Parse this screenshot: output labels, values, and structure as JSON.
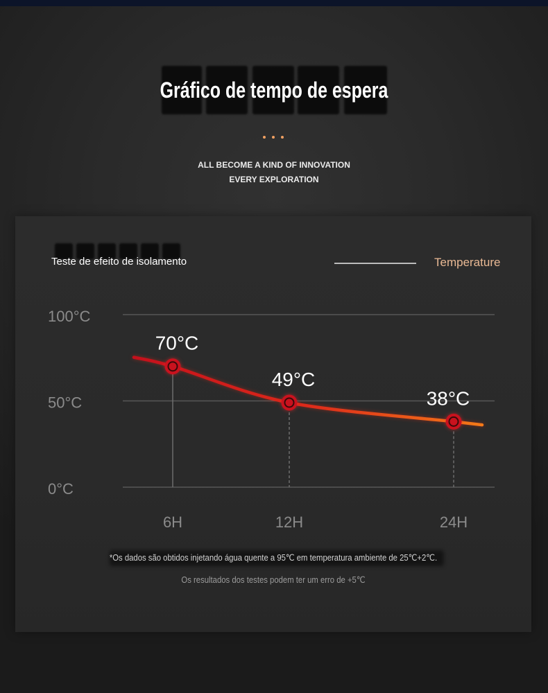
{
  "header": {
    "title": "Gráfico de tempo de espera",
    "tagline_lines": [
      "ALL BECOME A KIND OF INNOVATION",
      "EVERY EXPLORATION"
    ],
    "accent_color": "#f0a062"
  },
  "panel": {
    "footnotes": [
      "*Os dados são obtidos injetando água quente a 95℃ em temperatura ambiente de 25℃+2℃.",
      "Os resultados dos testes podem ter um erro de +5℃"
    ]
  },
  "chart_data": {
    "type": "line",
    "title": "Teste de efeito de isolamento",
    "categories": [
      "6H",
      "12H",
      "24H"
    ],
    "series": [
      {
        "name": "Temperature",
        "values": [
          70,
          49,
          38
        ],
        "data_labels": [
          "70°C",
          "49°C",
          "38°C"
        ],
        "colors": [
          "#c4101c",
          "#dd2a1a",
          "#f47a18"
        ],
        "marker_color": "#c9121e",
        "legend_color": "#e9b994"
      }
    ],
    "ylim": [
      0,
      100
    ],
    "y_ticks": [
      {
        "value": 100,
        "label": "100°C"
      },
      {
        "value": 50,
        "label": "50°C"
      },
      {
        "value": 0,
        "label": "0°C"
      }
    ],
    "grid": true,
    "legend": "top-right"
  }
}
